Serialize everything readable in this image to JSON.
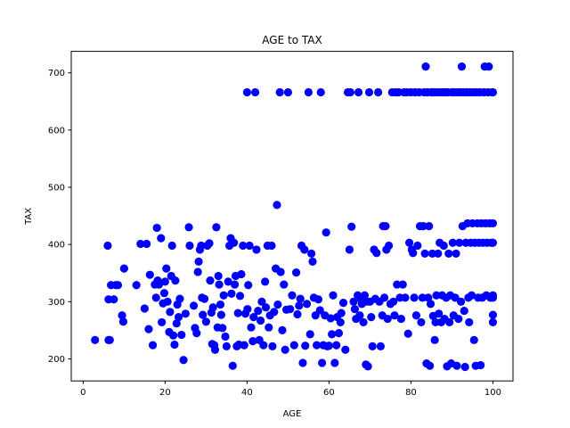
{
  "chart_data": {
    "type": "scatter",
    "title": "AGE to TAX",
    "xlabel": "AGE",
    "ylabel": "TAX",
    "xlim": [
      -2.9,
      104.9
    ],
    "ylim": [
      161.5,
      737.5
    ],
    "xticks": [
      0,
      20,
      40,
      60,
      80,
      100
    ],
    "yticks": [
      200,
      300,
      400,
      500,
      600,
      700
    ],
    "grid": false,
    "marker_color": "#0000ff",
    "series": [
      {
        "points": [
          [
            2.9,
            233
          ],
          [
            6.5,
            233
          ],
          [
            6.2,
            233
          ],
          [
            6.0,
            398
          ],
          [
            6.2,
            304
          ],
          [
            6.8,
            329
          ],
          [
            7.5,
            304
          ],
          [
            8.0,
            329
          ],
          [
            8.5,
            329
          ],
          [
            9.5,
            276
          ],
          [
            9.8,
            265
          ],
          [
            10.0,
            358
          ],
          [
            13.0,
            329
          ],
          [
            14.0,
            401
          ],
          [
            15.0,
            288
          ],
          [
            15.5,
            401
          ],
          [
            16.0,
            252
          ],
          [
            16.3,
            347
          ],
          [
            17.0,
            224
          ],
          [
            17.5,
            330
          ],
          [
            17.8,
            307
          ],
          [
            18.0,
            429
          ],
          [
            18.2,
            337
          ],
          [
            18.5,
            330
          ],
          [
            19.0,
            411
          ],
          [
            19.2,
            264
          ],
          [
            19.5,
            297
          ],
          [
            19.8,
            315
          ],
          [
            20.0,
            335
          ],
          [
            20.3,
            358
          ],
          [
            20.6,
            300
          ],
          [
            21.0,
            247
          ],
          [
            21.2,
            282
          ],
          [
            21.5,
            345
          ],
          [
            21.7,
            398
          ],
          [
            22.0,
            241
          ],
          [
            22.3,
            225
          ],
          [
            22.5,
            337
          ],
          [
            22.8,
            262
          ],
          [
            23.0,
            295
          ],
          [
            23.3,
            273
          ],
          [
            23.6,
            305
          ],
          [
            24.0,
            242
          ],
          [
            24.5,
            198
          ],
          [
            25.0,
            279
          ],
          [
            25.8,
            430
          ],
          [
            26.0,
            398
          ],
          [
            27.0,
            293
          ],
          [
            27.3,
            254
          ],
          [
            27.7,
            245
          ],
          [
            28.0,
            352
          ],
          [
            28.2,
            370
          ],
          [
            28.5,
            391
          ],
          [
            28.8,
            398
          ],
          [
            29.0,
            307
          ],
          [
            29.2,
            277
          ],
          [
            29.6,
            305
          ],
          [
            30.0,
            265
          ],
          [
            30.3,
            398
          ],
          [
            30.8,
            402
          ],
          [
            31.0,
            337
          ],
          [
            31.3,
            281
          ],
          [
            31.5,
            226
          ],
          [
            31.7,
            290
          ],
          [
            32.0,
            224
          ],
          [
            32.2,
            216
          ],
          [
            32.5,
            430
          ],
          [
            32.8,
            255
          ],
          [
            33.0,
            345
          ],
          [
            33.2,
            330
          ],
          [
            33.5,
            295
          ],
          [
            33.7,
            277
          ],
          [
            34.0,
            254
          ],
          [
            34.3,
            311
          ],
          [
            34.7,
            239
          ],
          [
            35.0,
            222
          ],
          [
            35.4,
            335
          ],
          [
            35.7,
            398
          ],
          [
            36.0,
            411
          ],
          [
            36.2,
            314
          ],
          [
            36.5,
            188
          ],
          [
            36.8,
            403
          ],
          [
            37.0,
            330
          ],
          [
            37.2,
            345
          ],
          [
            37.5,
            222
          ],
          [
            37.8,
            280
          ],
          [
            38.0,
            225
          ],
          [
            38.3,
            310
          ],
          [
            38.6,
            348
          ],
          [
            39.0,
            398
          ],
          [
            39.3,
            224
          ],
          [
            39.6,
            279
          ],
          [
            40.0,
            666
          ],
          [
            40.1,
            287
          ],
          [
            40.3,
            329
          ],
          [
            40.6,
            398
          ],
          [
            41.0,
            255
          ],
          [
            41.4,
            231
          ],
          [
            41.6,
            273
          ],
          [
            42.0,
            666
          ],
          [
            42.3,
            391
          ],
          [
            42.7,
            284
          ],
          [
            43.0,
            233
          ],
          [
            43.3,
            267
          ],
          [
            43.6,
            300
          ],
          [
            44.0,
            224
          ],
          [
            44.4,
            335
          ],
          [
            44.6,
            290
          ],
          [
            45.0,
            398
          ],
          [
            45.3,
            255
          ],
          [
            45.6,
            276
          ],
          [
            46.0,
            398
          ],
          [
            46.2,
            222
          ],
          [
            46.6,
            282
          ],
          [
            47.0,
            358
          ],
          [
            47.3,
            469
          ],
          [
            47.5,
            295
          ],
          [
            48.0,
            666
          ],
          [
            48.2,
            352
          ],
          [
            48.6,
            250
          ],
          [
            49.0,
            330
          ],
          [
            49.3,
            216
          ],
          [
            49.6,
            286
          ],
          [
            50.0,
            666
          ],
          [
            50.5,
            287
          ],
          [
            51.0,
            311
          ],
          [
            51.5,
            224
          ],
          [
            52.0,
            351
          ],
          [
            52.3,
            278
          ],
          [
            52.7,
            293
          ],
          [
            53.0,
            305
          ],
          [
            53.3,
            398
          ],
          [
            53.6,
            193
          ],
          [
            54.0,
            391
          ],
          [
            54.2,
            223
          ],
          [
            54.6,
            296
          ],
          [
            55.0,
            666
          ],
          [
            55.4,
            243
          ],
          [
            55.7,
            384
          ],
          [
            56.0,
            370
          ],
          [
            56.3,
            307
          ],
          [
            56.7,
            276
          ],
          [
            57.0,
            224
          ],
          [
            57.4,
            304
          ],
          [
            57.8,
            285
          ],
          [
            58.0,
            666
          ],
          [
            58.3,
            193
          ],
          [
            58.6,
            224
          ],
          [
            59.0,
            276
          ],
          [
            59.3,
            421
          ],
          [
            59.6,
            222
          ],
          [
            60.0,
            223
          ],
          [
            60.4,
            271
          ],
          [
            60.7,
            243
          ],
          [
            61.0,
            311
          ],
          [
            61.4,
            193
          ],
          [
            61.8,
            224
          ],
          [
            62.0,
            273
          ],
          [
            62.4,
            245
          ],
          [
            62.8,
            264
          ],
          [
            63.0,
            280
          ],
          [
            63.5,
            298
          ],
          [
            64.0,
            216
          ],
          [
            64.6,
            666
          ],
          [
            65.0,
            391
          ],
          [
            65.2,
            666
          ],
          [
            65.5,
            431
          ],
          [
            66.0,
            300
          ],
          [
            66.3,
            287
          ],
          [
            66.6,
            270
          ],
          [
            67.0,
            311
          ],
          [
            67.2,
            666
          ],
          [
            67.5,
            276
          ],
          [
            67.8,
            305
          ],
          [
            68.0,
            296
          ],
          [
            68.4,
            264
          ],
          [
            68.7,
            311
          ],
          [
            69.0,
            190
          ],
          [
            69.2,
            300
          ],
          [
            69.5,
            187
          ],
          [
            69.8,
            666
          ],
          [
            70.0,
            300
          ],
          [
            70.3,
            273
          ],
          [
            70.6,
            222
          ],
          [
            71.0,
            391
          ],
          [
            71.3,
            305
          ],
          [
            71.6,
            385
          ],
          [
            72.0,
            666
          ],
          [
            72.3,
            300
          ],
          [
            72.6,
            222
          ],
          [
            73.0,
            276
          ],
          [
            73.2,
            432
          ],
          [
            73.5,
            307
          ],
          [
            73.8,
            432
          ],
          [
            74.0,
            391
          ],
          [
            74.3,
            270
          ],
          [
            74.6,
            398
          ],
          [
            75.0,
            296
          ],
          [
            75.4,
            666
          ],
          [
            75.7,
            300
          ],
          [
            76.0,
            276
          ],
          [
            76.3,
            666
          ],
          [
            76.6,
            330
          ],
          [
            77.0,
            666
          ],
          [
            77.3,
            307
          ],
          [
            77.6,
            270
          ],
          [
            78.0,
            330
          ],
          [
            78.3,
            666
          ],
          [
            78.6,
            307
          ],
          [
            79.0,
            666
          ],
          [
            79.3,
            244
          ],
          [
            79.6,
            403
          ],
          [
            80.0,
            666
          ],
          [
            80.2,
            391
          ],
          [
            80.5,
            385
          ],
          [
            80.8,
            307
          ],
          [
            81.0,
            666
          ],
          [
            81.3,
            276
          ],
          [
            81.6,
            398
          ],
          [
            82.0,
            666
          ],
          [
            82.2,
            432
          ],
          [
            82.5,
            264
          ],
          [
            82.8,
            307
          ],
          [
            83.0,
            432
          ],
          [
            83.2,
            666
          ],
          [
            83.4,
            384
          ],
          [
            83.6,
            711
          ],
          [
            83.8,
            192
          ],
          [
            84.0,
            666
          ],
          [
            84.2,
            307
          ],
          [
            84.4,
            432
          ],
          [
            84.6,
            188
          ],
          [
            84.8,
            296
          ],
          [
            85.0,
            666
          ],
          [
            85.2,
            384
          ],
          [
            85.4,
            275
          ],
          [
            85.6,
            666
          ],
          [
            85.8,
            233
          ],
          [
            86.0,
            264
          ],
          [
            86.2,
            311
          ],
          [
            86.4,
            666
          ],
          [
            86.6,
            384
          ],
          [
            86.8,
            279
          ],
          [
            87.0,
            403
          ],
          [
            87.2,
            666
          ],
          [
            87.4,
            264
          ],
          [
            87.6,
            311
          ],
          [
            87.8,
            666
          ],
          [
            88.0,
            398
          ],
          [
            88.2,
            270
          ],
          [
            88.4,
            666
          ],
          [
            88.6,
            307
          ],
          [
            88.8,
            187
          ],
          [
            89.0,
            666
          ],
          [
            89.2,
            384
          ],
          [
            89.4,
            264
          ],
          [
            89.6,
            311
          ],
          [
            89.8,
            192
          ],
          [
            90.0,
            666
          ],
          [
            90.2,
            403
          ],
          [
            90.4,
            276
          ],
          [
            90.6,
            666
          ],
          [
            90.8,
            307
          ],
          [
            91.0,
            384
          ],
          [
            91.2,
            188
          ],
          [
            91.4,
            666
          ],
          [
            91.6,
            270
          ],
          [
            91.8,
            403
          ],
          [
            92.0,
            666
          ],
          [
            92.2,
            300
          ],
          [
            92.4,
            711
          ],
          [
            92.6,
            432
          ],
          [
            92.8,
            666
          ],
          [
            93.0,
            284
          ],
          [
            93.2,
            186
          ],
          [
            93.4,
            403
          ],
          [
            93.6,
            666
          ],
          [
            93.8,
            437
          ],
          [
            94.0,
            307
          ],
          [
            94.2,
            264
          ],
          [
            94.4,
            666
          ],
          [
            94.6,
            403
          ],
          [
            94.8,
            311
          ],
          [
            95.0,
            437
          ],
          [
            95.2,
            666
          ],
          [
            95.4,
            233
          ],
          [
            95.6,
            403
          ],
          [
            95.8,
            188
          ],
          [
            96.0,
            666
          ],
          [
            96.2,
            437
          ],
          [
            96.4,
            307
          ],
          [
            96.6,
            403
          ],
          [
            96.8,
            666
          ],
          [
            97.0,
            189
          ],
          [
            97.2,
            437
          ],
          [
            97.4,
            307
          ],
          [
            97.6,
            403
          ],
          [
            97.8,
            666
          ],
          [
            98.0,
            711
          ],
          [
            98.2,
            437
          ],
          [
            98.4,
            311
          ],
          [
            98.6,
            403
          ],
          [
            98.8,
            666
          ],
          [
            99.0,
            711
          ],
          [
            99.2,
            437
          ],
          [
            99.4,
            307
          ],
          [
            99.6,
            403
          ],
          [
            99.8,
            666
          ],
          [
            100.0,
            666
          ],
          [
            100.0,
            437
          ],
          [
            100.0,
            403
          ],
          [
            100.0,
            311
          ],
          [
            100.0,
            307
          ],
          [
            100.0,
            277
          ],
          [
            100.0,
            264
          ]
        ]
      }
    ]
  }
}
